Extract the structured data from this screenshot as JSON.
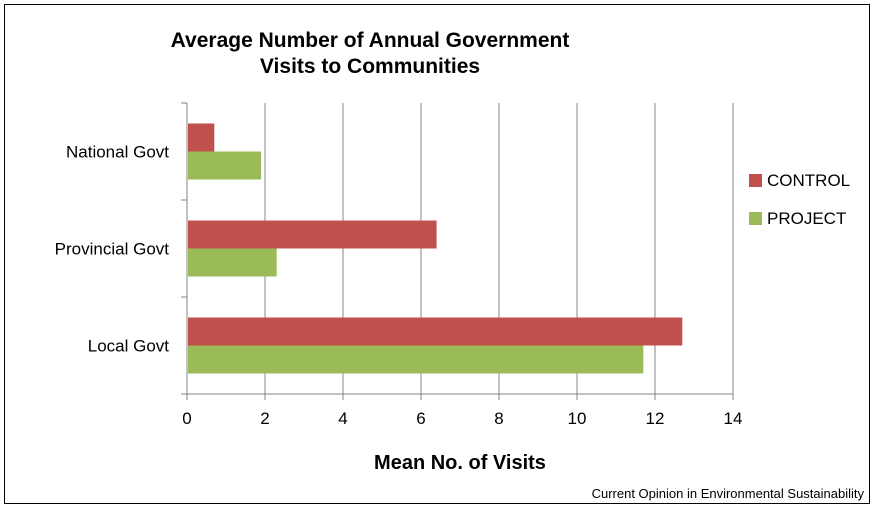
{
  "chart_data": {
    "type": "bar",
    "orientation": "horizontal",
    "title_line1": "Average Number of Annual Government",
    "title_line2": "Visits to Communities",
    "xlabel": "Mean No. of Visits",
    "ylabel": "",
    "categories": [
      "National Govt",
      "Provincial Govt",
      "Local Govt"
    ],
    "series": [
      {
        "name": "CONTROL",
        "color": "#c0504d",
        "values": [
          0.7,
          6.4,
          12.7
        ]
      },
      {
        "name": "PROJECT",
        "color": "#9bbb59",
        "values": [
          1.9,
          2.3,
          11.7
        ]
      }
    ],
    "xlim": [
      0,
      14
    ],
    "xticks": [
      "0",
      "2",
      "4",
      "6",
      "8",
      "10",
      "12",
      "14"
    ],
    "grid": true,
    "legend_position": "right"
  },
  "credit": "Current Opinion in Environmental Sustainability"
}
